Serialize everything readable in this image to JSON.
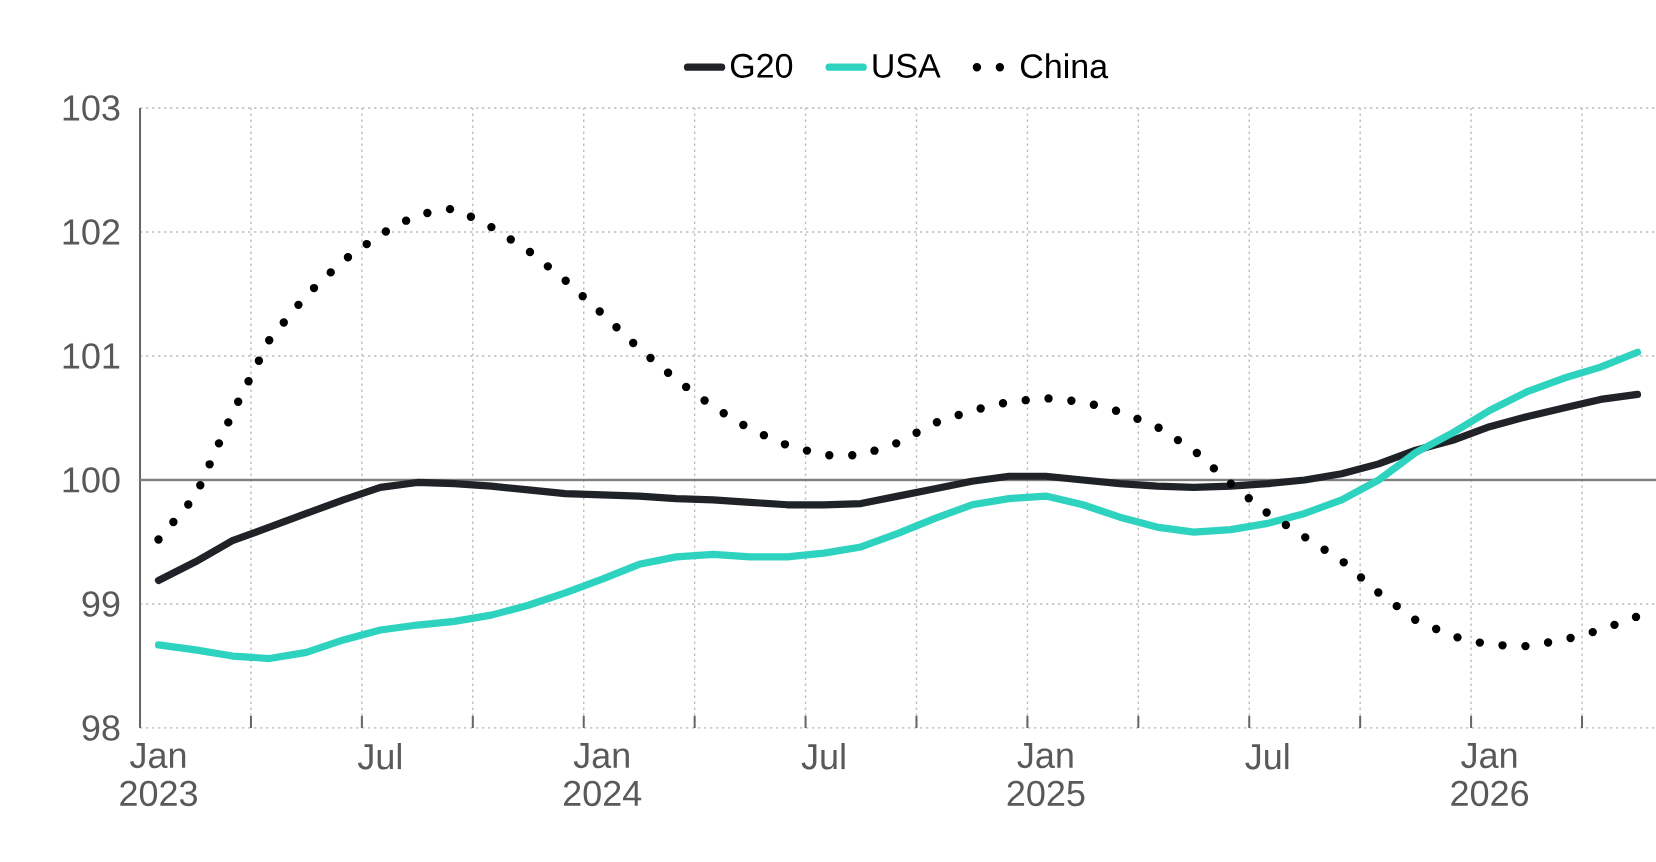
{
  "chart_data": {
    "type": "line",
    "categories": [
      "Jan 2023",
      null,
      null,
      null,
      null,
      null,
      "Jul",
      null,
      null,
      null,
      null,
      null,
      "Jan 2024",
      null,
      null,
      null,
      null,
      null,
      "Jul",
      null,
      null,
      null,
      null,
      null,
      "Jan 2025",
      null,
      null,
      null,
      null,
      null,
      "Jul",
      null,
      null,
      null,
      null,
      null,
      "Jan 2026",
      null,
      null,
      null,
      null
    ],
    "series": [
      {
        "name": "G20",
        "color": "#1f2328",
        "line_style": "solid",
        "values": [
          99.19,
          99.34,
          99.51,
          99.62,
          99.73,
          99.84,
          99.94,
          99.98,
          99.97,
          99.95,
          99.92,
          99.89,
          99.88,
          99.87,
          99.85,
          99.84,
          99.82,
          99.8,
          99.8,
          99.81,
          99.87,
          99.93,
          99.99,
          100.03,
          100.03,
          100.0,
          99.97,
          99.95,
          99.94,
          99.95,
          99.97,
          100.0,
          100.05,
          100.13,
          100.24,
          100.32,
          100.43,
          100.51,
          100.58,
          100.65,
          100.69
        ]
      },
      {
        "name": "USA",
        "color": "#2ed3c0",
        "line_style": "solid",
        "values": [
          98.67,
          98.63,
          98.58,
          98.56,
          98.61,
          98.71,
          98.79,
          98.83,
          98.86,
          98.91,
          98.99,
          99.09,
          99.2,
          99.32,
          99.38,
          99.4,
          99.38,
          99.38,
          99.41,
          99.46,
          99.57,
          99.69,
          99.8,
          99.85,
          99.87,
          99.8,
          99.7,
          99.62,
          99.58,
          99.6,
          99.65,
          99.73,
          99.84,
          100.0,
          100.22,
          100.38,
          100.56,
          100.71,
          100.82,
          100.91,
          101.03
        ]
      },
      {
        "name": "China",
        "color": "#000000",
        "line_style": "dotted",
        "values": [
          99.52,
          99.87,
          100.54,
          101.13,
          101.49,
          101.77,
          101.98,
          102.14,
          102.19,
          102.04,
          101.85,
          101.61,
          101.34,
          101.06,
          100.81,
          100.59,
          100.41,
          100.28,
          100.2,
          100.2,
          100.3,
          100.46,
          100.56,
          100.63,
          100.66,
          100.63,
          100.55,
          100.43,
          100.24,
          99.97,
          99.73,
          99.54,
          99.35,
          99.09,
          98.87,
          98.74,
          98.67,
          98.66,
          98.71,
          98.79,
          98.9
        ]
      }
    ],
    "ylim": [
      98,
      103
    ],
    "yticks": [
      98,
      99,
      100,
      101,
      102,
      103
    ],
    "ref_lines": [
      {
        "axis": "y",
        "value": 100,
        "color": "#7f7f7f"
      }
    ],
    "grid": true,
    "legend": "top"
  }
}
